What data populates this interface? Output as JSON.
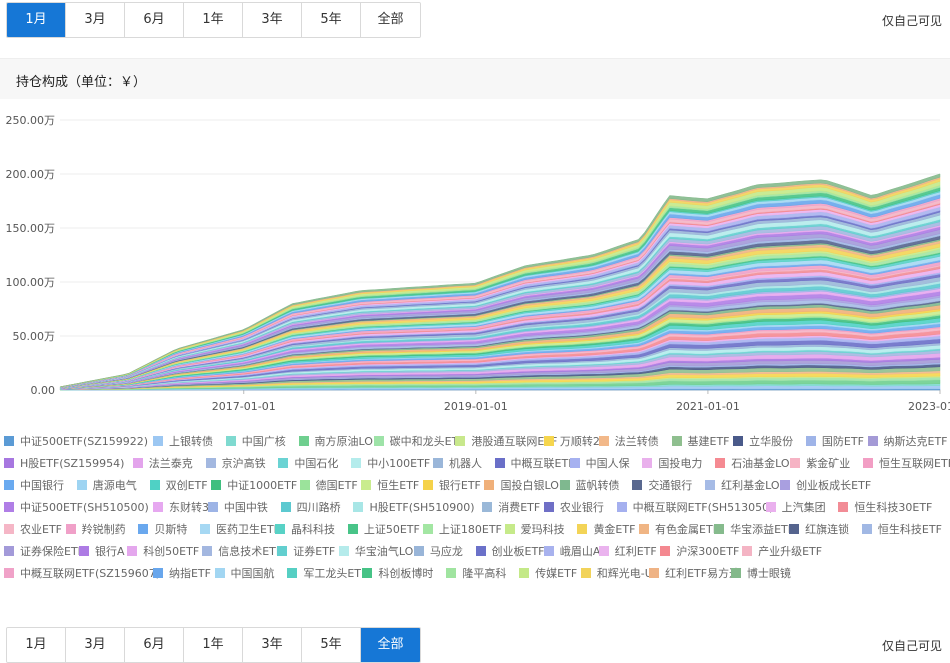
{
  "range_tabs": [
    "1月",
    "3月",
    "6月",
    "1年",
    "3年",
    "5年",
    "全部"
  ],
  "top_active_tab": 0,
  "bottom_active_tab": 6,
  "visibility_note": "仅自己可见",
  "section_title": "持仓构成（单位：￥）",
  "chart_data": {
    "type": "area",
    "stacked": true,
    "y_ticks": [
      "0.00",
      "50.00万",
      "100.00万",
      "150.00万",
      "200.00万",
      "250.00万"
    ],
    "y_tick_values": [
      0,
      500000,
      1000000,
      1500000,
      2000000,
      2500000
    ],
    "ylim": [
      0,
      2500000
    ],
    "x_ticks": [
      "2017-01-01",
      "2019-01-01",
      "2021-01-01",
      "2023-01-01"
    ],
    "x_range": [
      "2015-06-01",
      "2023-01-01"
    ],
    "grid": true,
    "legend_position": "bottom",
    "total_approx": [
      {
        "x": "2015-06",
        "y": 30000
      },
      {
        "x": "2016-01",
        "y": 150000
      },
      {
        "x": "2016-06",
        "y": 380000
      },
      {
        "x": "2017-01",
        "y": 560000
      },
      {
        "x": "2017-06",
        "y": 800000
      },
      {
        "x": "2018-01",
        "y": 920000
      },
      {
        "x": "2018-06",
        "y": 950000
      },
      {
        "x": "2019-01",
        "y": 990000
      },
      {
        "x": "2019-06",
        "y": 1150000
      },
      {
        "x": "2020-01",
        "y": 1250000
      },
      {
        "x": "2020-06",
        "y": 1400000
      },
      {
        "x": "2020-09",
        "y": 1800000
      },
      {
        "x": "2021-01",
        "y": 1770000
      },
      {
        "x": "2021-06",
        "y": 1900000
      },
      {
        "x": "2022-01",
        "y": 1950000
      },
      {
        "x": "2022-06",
        "y": 1800000
      },
      {
        "x": "2023-01",
        "y": 2000000
      }
    ],
    "series": [
      {
        "name": "中证500ETF(SZ159922)",
        "color": "#5b9bd5"
      },
      {
        "name": "上银转债",
        "color": "#9cc7f2"
      },
      {
        "name": "中国广核",
        "color": "#7fdad0"
      },
      {
        "name": "南方原油LOF",
        "color": "#6fcf8f"
      },
      {
        "name": "碳中和龙头ETF",
        "color": "#9ee3a8"
      },
      {
        "name": "港股通互联网ETF",
        "color": "#c8e88c"
      },
      {
        "name": "万顺转2",
        "color": "#f6d64e"
      },
      {
        "name": "法兰转债",
        "color": "#f2b889"
      },
      {
        "name": "基建ETF",
        "color": "#8fbf8f"
      },
      {
        "name": "立华股份",
        "color": "#4a5a8a"
      },
      {
        "name": "国防ETF",
        "color": "#9fb4e8"
      },
      {
        "name": "纳斯达克ETF",
        "color": "#a49ad6"
      },
      {
        "name": "H股ETF(SZ159954)",
        "color": "#a777e0"
      },
      {
        "name": "法兰泰克",
        "color": "#e3a4ec"
      },
      {
        "name": "京沪高铁",
        "color": "#a3b8e0"
      },
      {
        "name": "中国石化",
        "color": "#6bd3d3"
      },
      {
        "name": "中小100ETF",
        "color": "#b4ecec"
      },
      {
        "name": "机器人",
        "color": "#9ab6d9"
      },
      {
        "name": "中概互联ETF",
        "color": "#6a6fc8"
      },
      {
        "name": "中国人保",
        "color": "#a6b1f0"
      },
      {
        "name": "国投电力",
        "color": "#e9b0ec"
      },
      {
        "name": "石油基金LOF",
        "color": "#f58a92"
      },
      {
        "name": "紫金矿业",
        "color": "#f6b3c4"
      },
      {
        "name": "恒生互联网ETF",
        "color": "#f29ec4"
      },
      {
        "name": "中国银行",
        "color": "#6aaaf0"
      },
      {
        "name": "唐源电气",
        "color": "#9ed4f2"
      },
      {
        "name": "双创ETF",
        "color": "#4fd1c5"
      },
      {
        "name": "中证1000ETF",
        "color": "#3fbf7f"
      },
      {
        "name": "德国ETF",
        "color": "#9be39b"
      },
      {
        "name": "恒生ETF",
        "color": "#c9ec8e"
      },
      {
        "name": "银行ETF",
        "color": "#f5d24a"
      },
      {
        "name": "国投白银LOF",
        "color": "#f0b07a"
      },
      {
        "name": "蓝帆转债",
        "color": "#7fb88f"
      },
      {
        "name": "交通银行",
        "color": "#59688f"
      },
      {
        "name": "红利基金LOF",
        "color": "#a6bbe6"
      },
      {
        "name": "创业板成长ETF",
        "color": "#a99fe0"
      },
      {
        "name": "中证500ETF(SH510500)",
        "color": "#b07ee6"
      },
      {
        "name": "东财转3",
        "color": "#e6a8f0"
      },
      {
        "name": "中国中铁",
        "color": "#9db4e6"
      },
      {
        "name": "四川路桥",
        "color": "#5cc9d0"
      },
      {
        "name": "H股ETF(SH510900)",
        "color": "#a8e6e6"
      },
      {
        "name": "消费ETF",
        "color": "#9ab8d8"
      },
      {
        "name": "农业银行",
        "color": "#6f6fc6"
      },
      {
        "name": "中概互联网ETF(SH513050)",
        "color": "#a5b0ef"
      },
      {
        "name": "上汽集团",
        "color": "#eab0ee"
      },
      {
        "name": "恒生科技30ETF",
        "color": "#f28c96"
      },
      {
        "name": "农业ETF",
        "color": "#f5b6c6"
      },
      {
        "name": "羚锐制药",
        "color": "#f0a0c8"
      },
      {
        "name": "贝斯特",
        "color": "#6aa8ee"
      },
      {
        "name": "医药卫生ETF",
        "color": "#a6d8f3"
      },
      {
        "name": "晶科科技",
        "color": "#58d2c6"
      },
      {
        "name": "上证50ETF",
        "color": "#48c488"
      },
      {
        "name": "上证180ETF",
        "color": "#a3e6a3"
      },
      {
        "name": "爱玛科技",
        "color": "#c6ea8a"
      },
      {
        "name": "黄金ETF",
        "color": "#f3d457"
      },
      {
        "name": "有色金属ETF",
        "color": "#f0b584"
      },
      {
        "name": "华宝添益ETF",
        "color": "#86bb8d"
      },
      {
        "name": "红旗连锁",
        "color": "#55648e"
      },
      {
        "name": "恒生科技ETF",
        "color": "#a1b8e4"
      },
      {
        "name": "证券保险ETF",
        "color": "#a39ad9"
      },
      {
        "name": "银行A",
        "color": "#ad7be4"
      },
      {
        "name": "科创50ETF",
        "color": "#e4a7ed"
      },
      {
        "name": "信息技术ETF",
        "color": "#a3b7e0"
      },
      {
        "name": "证券ETF",
        "color": "#62cfcf"
      },
      {
        "name": "华宝油气LOF",
        "color": "#b5ebeb"
      },
      {
        "name": "马应龙",
        "color": "#99b5d8"
      },
      {
        "name": "创业板ETF",
        "color": "#6b71c9"
      },
      {
        "name": "峨眉山A",
        "color": "#a8b2ee"
      },
      {
        "name": "红利ETF",
        "color": "#eab3ee"
      },
      {
        "name": "沪深300ETF",
        "color": "#f48890"
      },
      {
        "name": "产业升级ETF",
        "color": "#f4b4c4"
      },
      {
        "name": "中概互联网ETF(SZ159607)",
        "color": "#f0a2c8"
      },
      {
        "name": "纳指ETF",
        "color": "#68a6ec"
      },
      {
        "name": "中国国航",
        "color": "#a2d6f2"
      },
      {
        "name": "军工龙头ETF",
        "color": "#56cfc3"
      },
      {
        "name": "科创板博时",
        "color": "#46c386"
      },
      {
        "name": "隆平高科",
        "color": "#a0e4a0"
      },
      {
        "name": "传媒ETF",
        "color": "#c4e988"
      },
      {
        "name": "和辉光电-U",
        "color": "#f2d35a"
      },
      {
        "name": "红利ETF易方达",
        "color": "#efb385"
      },
      {
        "name": "博士眼镜",
        "color": "#84b98b"
      }
    ]
  }
}
